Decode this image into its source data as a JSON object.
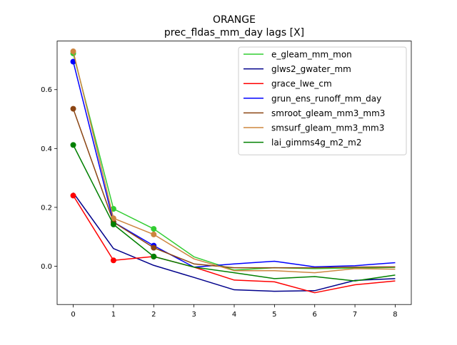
{
  "chart_data": {
    "type": "line",
    "title": "ORANGE",
    "subtitle": "prec_fldas_mm_day lags [X]",
    "xlabel": "",
    "ylabel": "",
    "x": [
      0,
      1,
      2,
      3,
      4,
      5,
      6,
      7,
      8
    ],
    "xlim": [
      -0.4,
      8.4
    ],
    "ylim": [
      -0.13,
      0.765
    ],
    "xticks": [
      0,
      1,
      2,
      3,
      4,
      5,
      6,
      7,
      8
    ],
    "yticks": [
      0.0,
      0.2,
      0.4,
      0.6
    ],
    "ytick_labels": [
      "0.0",
      "0.2",
      "0.4",
      "0.6"
    ],
    "grid": false,
    "legend_position": "upper-right",
    "markers_on_x": [
      0,
      1,
      2
    ],
    "series": [
      {
        "name": "e_gleam_mm_mon",
        "color": "#32cd32",
        "markers": true,
        "values": [
          0.723,
          0.195,
          0.127,
          0.032,
          -0.013,
          -0.005,
          -0.008,
          -0.006,
          -0.004
        ]
      },
      {
        "name": "glws2_gwater_mm",
        "color": "#00008b",
        "markers": false,
        "values": [
          0.25,
          0.06,
          0.003,
          -0.038,
          -0.08,
          -0.085,
          -0.083,
          -0.048,
          -0.042
        ]
      },
      {
        "name": "grace_lwe_cm",
        "color": "#ff0000",
        "markers": true,
        "values": [
          0.24,
          0.02,
          0.033,
          -0.003,
          -0.047,
          -0.053,
          -0.09,
          -0.063,
          -0.05
        ]
      },
      {
        "name": "grun_ens_runoff_mm_day",
        "color": "#0000ff",
        "markers": true,
        "values": [
          0.695,
          0.15,
          0.07,
          -0.003,
          0.008,
          0.017,
          -0.002,
          0.002,
          0.012
        ]
      },
      {
        "name": "smroot_gleam_mm3_mm3",
        "color": "#8b4513",
        "markers": true,
        "values": [
          0.535,
          0.15,
          0.063,
          0.008,
          -0.005,
          -0.005,
          -0.005,
          -0.003,
          -0.002
        ]
      },
      {
        "name": "smsurf_gleam_mm3_mm3",
        "color": "#cd853f",
        "markers": true,
        "values": [
          0.73,
          0.163,
          0.108,
          0.025,
          -0.015,
          -0.015,
          -0.022,
          -0.008,
          -0.01
        ]
      },
      {
        "name": "lai_gimms4g_m2_m2",
        "color": "#008000",
        "markers": true,
        "values": [
          0.412,
          0.142,
          0.033,
          -0.003,
          -0.022,
          -0.042,
          -0.035,
          -0.05,
          -0.03
        ]
      }
    ]
  }
}
